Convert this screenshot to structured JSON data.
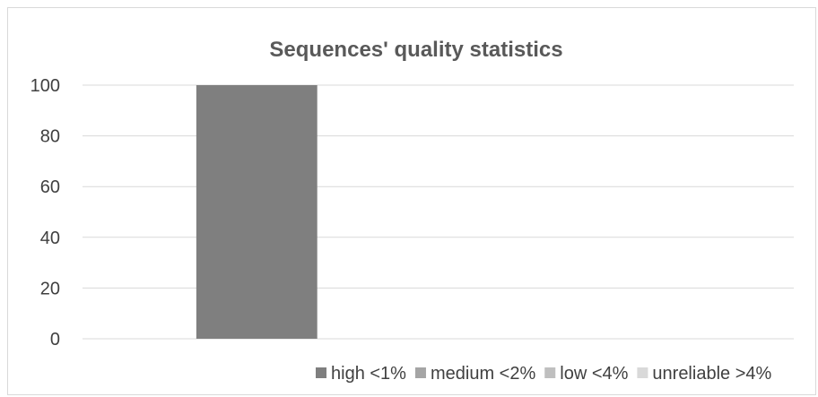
{
  "chart_data": {
    "type": "bar",
    "title": "Sequences' quality statistics",
    "xlabel": "",
    "ylabel": "",
    "ylim": [
      0,
      100
    ],
    "yticks": [
      0,
      20,
      40,
      60,
      80,
      100
    ],
    "grid": true,
    "legend_position": "bottom-right",
    "categories": [
      ""
    ],
    "series": [
      {
        "name": "high <1%",
        "values": [
          100
        ],
        "color": "#7f7f7f"
      },
      {
        "name": "medium <2%",
        "values": [
          0
        ],
        "color": "#a5a5a5"
      },
      {
        "name": "low <4%",
        "values": [
          0
        ],
        "color": "#bfbfbf"
      },
      {
        "name": "unreliable >4%",
        "values": [
          0
        ],
        "color": "#d9d9d9"
      }
    ]
  }
}
